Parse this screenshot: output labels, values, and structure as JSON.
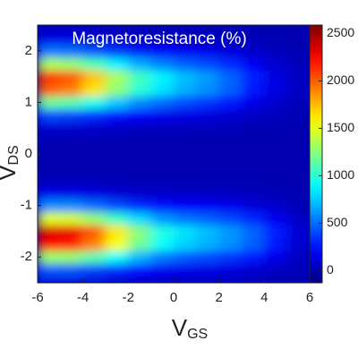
{
  "chart_data": {
    "type": "heatmap",
    "title": "Magnetoresistance (%)",
    "xlabel": "V",
    "xlabel_sub": "GS",
    "ylabel": "V",
    "ylabel_sub": "DS",
    "colormap": "jet",
    "x": [
      -5.5,
      -4.5,
      -3.5,
      -2.5,
      -1.5,
      -0.5,
      0.5,
      1.5,
      2.5,
      3.5,
      4.5,
      5.5
    ],
    "y": [
      -2.5,
      -2.25,
      -2,
      -1.75,
      -1.5,
      -1.25,
      -1,
      -0.75,
      -0.5,
      -0.25,
      0,
      0.25,
      0.5,
      0.75,
      1,
      1.25,
      1.5,
      1.75,
      2,
      2.25,
      2.5
    ],
    "z": [
      [
        100,
        100,
        80,
        70,
        50,
        40,
        30,
        30,
        30,
        20,
        10,
        0
      ],
      [
        440,
        430,
        380,
        310,
        230,
        180,
        150,
        140,
        120,
        90,
        50,
        20
      ],
      [
        1300,
        1270,
        1110,
        900,
        690,
        530,
        450,
        400,
        340,
        270,
        160,
        50
      ],
      [
        2230,
        2180,
        1910,
        1550,
        1180,
        910,
        770,
        680,
        590,
        460,
        270,
        90
      ],
      [
        2350,
        2300,
        2020,
        1630,
        1250,
        960,
        820,
        720,
        620,
        480,
        290,
        100
      ],
      [
        1490,
        1460,
        1280,
        1040,
        790,
        610,
        520,
        460,
        400,
        310,
        180,
        60
      ],
      [
        590,
        580,
        500,
        410,
        310,
        240,
        200,
        180,
        160,
        120,
        70,
        20
      ],
      [
        150,
        140,
        130,
        100,
        80,
        60,
        50,
        50,
        40,
        30,
        20,
        10
      ],
      [
        20,
        20,
        20,
        20,
        10,
        10,
        10,
        10,
        10,
        10,
        0,
        0
      ],
      [
        0,
        0,
        0,
        0,
        0,
        0,
        0,
        0,
        0,
        0,
        0,
        0
      ],
      [
        0,
        0,
        0,
        0,
        0,
        0,
        0,
        0,
        0,
        0,
        0,
        0
      ],
      [
        0,
        0,
        0,
        0,
        0,
        0,
        0,
        0,
        0,
        0,
        0,
        0
      ],
      [
        90,
        80,
        70,
        60,
        40,
        40,
        30,
        30,
        20,
        10,
        10,
        0
      ],
      [
        400,
        380,
        320,
        250,
        200,
        160,
        140,
        120,
        90,
        50,
        30,
        10
      ],
      [
        1170,
        1110,
        950,
        740,
        580,
        480,
        400,
        340,
        270,
        160,
        80,
        30
      ],
      [
        2000,
        1910,
        1640,
        1270,
        1000,
        820,
        680,
        590,
        460,
        270,
        140,
        50
      ],
      [
        2110,
        2020,
        1730,
        1340,
        1060,
        860,
        720,
        620,
        480,
        290,
        140,
        50
      ],
      [
        1340,
        1280,
        1100,
        850,
        670,
        550,
        460,
        400,
        310,
        180,
        90,
        30
      ],
      [
        530,
        500,
        430,
        340,
        260,
        220,
        180,
        160,
        120,
        70,
        40,
        10
      ],
      [
        130,
        130,
        110,
        80,
        70,
        50,
        50,
        40,
        30,
        20,
        10,
        0
      ],
      [
        20,
        20,
        20,
        10,
        10,
        10,
        10,
        10,
        10,
        0,
        0,
        0
      ]
    ],
    "xlim": [
      -6,
      6
    ],
    "ylim": [
      -2.5,
      2.5
    ],
    "xticks": [
      -6,
      -4,
      -2,
      0,
      2,
      4,
      6
    ],
    "yticks": [
      -2,
      -1,
      0,
      1,
      2
    ],
    "clim": [
      -130,
      2590
    ],
    "cticks": [
      0,
      500,
      1000,
      1500,
      2000,
      2500
    ]
  }
}
